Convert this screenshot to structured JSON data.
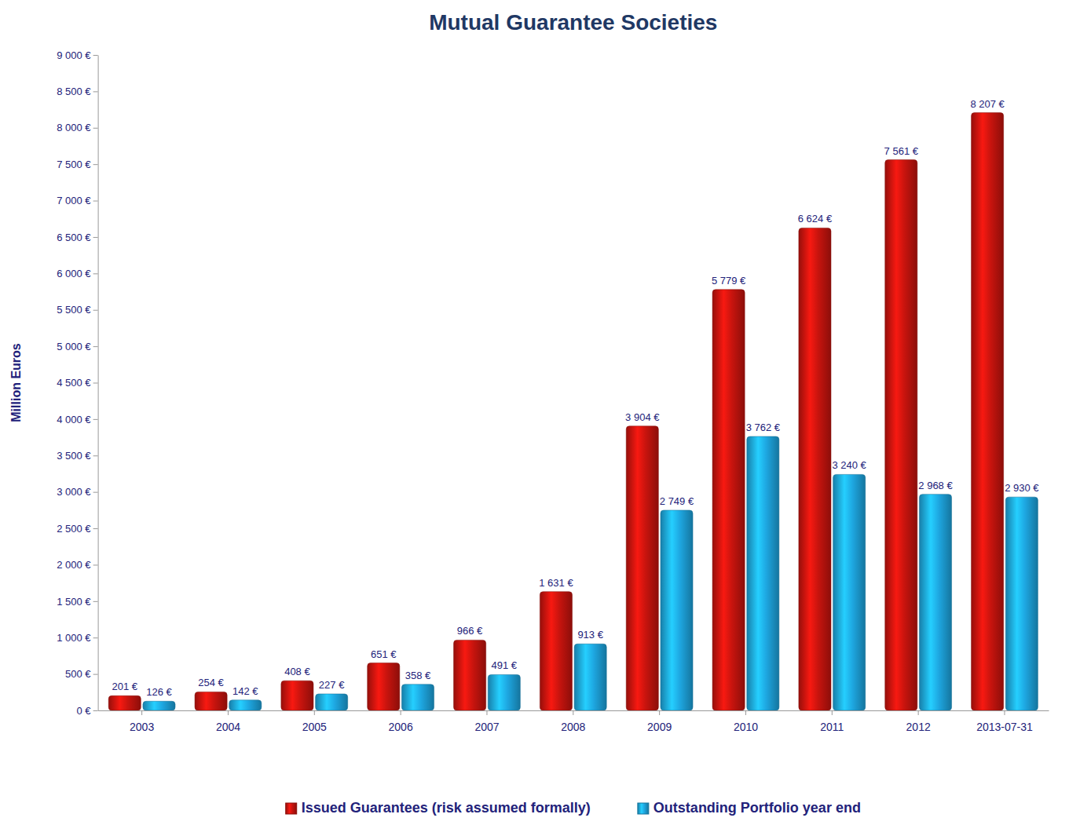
{
  "chart_data": {
    "type": "bar",
    "title": "Mutual Guarantee Societies",
    "y_label": "Million Euros",
    "categories": [
      "2003",
      "2004",
      "2005",
      "2006",
      "2007",
      "2008",
      "2009",
      "2010",
      "2011",
      "2012",
      "2013-07-31"
    ],
    "series": [
      {
        "name": "Issued Guarantees (risk assumed formally)",
        "color": "#c8140e",
        "values": [
          201,
          254,
          408,
          651,
          966,
          1631,
          3904,
          5779,
          6624,
          7561,
          8207
        ],
        "value_labels": [
          "201 €",
          "254 €",
          "408 €",
          "651 €",
          "966 €",
          "1 631 €",
          "3 904 €",
          "5 779 €",
          "6 624 €",
          "7 561 €",
          "8 207 €"
        ]
      },
      {
        "name": "Outstanding Portfolio year end",
        "color": "#1ea7e1",
        "values": [
          126,
          142,
          227,
          358,
          491,
          913,
          2749,
          3762,
          3240,
          2968,
          2930
        ],
        "value_labels": [
          "126 €",
          "142 €",
          "227 €",
          "358 €",
          "491 €",
          "913 €",
          "2 749 €",
          "3 762 €",
          "3 240 €",
          "2 968 €",
          "2 930 €"
        ]
      }
    ],
    "ylim": [
      0,
      9000
    ],
    "yticks": [
      {
        "value": 0,
        "label": "0 €"
      },
      {
        "value": 500,
        "label": "500 €"
      },
      {
        "value": 1000,
        "label": "1 000 €"
      },
      {
        "value": 1500,
        "label": "1 500 €"
      },
      {
        "value": 2000,
        "label": "2 000 €"
      },
      {
        "value": 2500,
        "label": "2 500 €"
      },
      {
        "value": 3000,
        "label": "3 000 €"
      },
      {
        "value": 3500,
        "label": "3 500 €"
      },
      {
        "value": 4000,
        "label": "4 000 €"
      },
      {
        "value": 4500,
        "label": "4 500 €"
      },
      {
        "value": 5000,
        "label": "5 000 €"
      },
      {
        "value": 5500,
        "label": "5 500 €"
      },
      {
        "value": 6000,
        "label": "6 000 €"
      },
      {
        "value": 6500,
        "label": "6 500 €"
      },
      {
        "value": 7000,
        "label": "7 000 €"
      },
      {
        "value": 7500,
        "label": "7 500 €"
      },
      {
        "value": 8000,
        "label": "8 000 €"
      },
      {
        "value": 8500,
        "label": "8 500 €"
      },
      {
        "value": 9000,
        "label": "9 000 €"
      }
    ],
    "grid": false,
    "data_labels": true,
    "legend": "bottom"
  }
}
